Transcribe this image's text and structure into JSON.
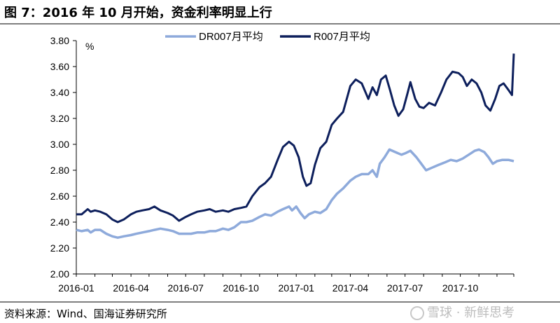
{
  "figure_title": "图 7：2016 年 10 月开始，资金利率明显上行",
  "source_note": "资料来源：Wind、国海证券研究所",
  "watermark": "雪球 · 新鲜思考",
  "colors": {
    "dr007": "#8eaadb",
    "r007": "#0d1f5c",
    "axis": "#000000",
    "rule": "#7f7f7f"
  },
  "chart_data": {
    "type": "line",
    "title": "",
    "xlabel": "",
    "ylabel": "%",
    "ylim": [
      2.0,
      3.8
    ],
    "yticks": [
      "2.00",
      "2.20",
      "2.40",
      "2.60",
      "2.80",
      "3.00",
      "3.20",
      "3.40",
      "3.60",
      "3.80"
    ],
    "xlim": [
      "2016-01",
      "2017-12-29"
    ],
    "xtick_labels": [
      "2016-01",
      "2016-04",
      "2016-07",
      "2016-10",
      "2017-01",
      "2017-04",
      "2017-07",
      "2017-10"
    ],
    "grid": false,
    "legend_position": "top",
    "series": [
      {
        "name": "DR007月平均",
        "points": [
          [
            "2016-01-01",
            2.34
          ],
          [
            "2016-01-10",
            2.33
          ],
          [
            "2016-01-20",
            2.34
          ],
          [
            "2016-01-25",
            2.32
          ],
          [
            "2016-02-01",
            2.34
          ],
          [
            "2016-02-10",
            2.34
          ],
          [
            "2016-02-20",
            2.31
          ],
          [
            "2016-03-01",
            2.29
          ],
          [
            "2016-03-10",
            2.28
          ],
          [
            "2016-03-20",
            2.29
          ],
          [
            "2016-04-01",
            2.3
          ],
          [
            "2016-04-10",
            2.31
          ],
          [
            "2016-04-20",
            2.32
          ],
          [
            "2016-05-01",
            2.33
          ],
          [
            "2016-05-10",
            2.34
          ],
          [
            "2016-05-20",
            2.35
          ],
          [
            "2016-06-01",
            2.34
          ],
          [
            "2016-06-10",
            2.33
          ],
          [
            "2016-06-20",
            2.31
          ],
          [
            "2016-07-01",
            2.31
          ],
          [
            "2016-07-10",
            2.31
          ],
          [
            "2016-07-20",
            2.32
          ],
          [
            "2016-08-01",
            2.32
          ],
          [
            "2016-08-10",
            2.33
          ],
          [
            "2016-08-20",
            2.33
          ],
          [
            "2016-09-01",
            2.35
          ],
          [
            "2016-09-10",
            2.34
          ],
          [
            "2016-09-20",
            2.36
          ],
          [
            "2016-10-01",
            2.4
          ],
          [
            "2016-10-10",
            2.4
          ],
          [
            "2016-10-20",
            2.41
          ],
          [
            "2016-11-01",
            2.44
          ],
          [
            "2016-11-10",
            2.46
          ],
          [
            "2016-11-20",
            2.45
          ],
          [
            "2016-12-01",
            2.48
          ],
          [
            "2016-12-10",
            2.5
          ],
          [
            "2016-12-20",
            2.52
          ],
          [
            "2016-12-25",
            2.49
          ],
          [
            "2017-01-01",
            2.52
          ],
          [
            "2017-01-08",
            2.47
          ],
          [
            "2017-01-15",
            2.43
          ],
          [
            "2017-01-22",
            2.46
          ],
          [
            "2017-02-01",
            2.48
          ],
          [
            "2017-02-10",
            2.47
          ],
          [
            "2017-02-20",
            2.5
          ],
          [
            "2017-03-01",
            2.57
          ],
          [
            "2017-03-10",
            2.62
          ],
          [
            "2017-03-20",
            2.66
          ],
          [
            "2017-04-01",
            2.72
          ],
          [
            "2017-04-10",
            2.75
          ],
          [
            "2017-04-20",
            2.77
          ],
          [
            "2017-05-01",
            2.77
          ],
          [
            "2017-05-08",
            2.8
          ],
          [
            "2017-05-15",
            2.75
          ],
          [
            "2017-05-20",
            2.85
          ],
          [
            "2017-05-28",
            2.9
          ],
          [
            "2017-06-05",
            2.96
          ],
          [
            "2017-06-15",
            2.94
          ],
          [
            "2017-06-25",
            2.92
          ],
          [
            "2017-07-01",
            2.93
          ],
          [
            "2017-07-10",
            2.95
          ],
          [
            "2017-07-20",
            2.9
          ],
          [
            "2017-07-28",
            2.85
          ],
          [
            "2017-08-05",
            2.8
          ],
          [
            "2017-08-15",
            2.82
          ],
          [
            "2017-08-25",
            2.84
          ],
          [
            "2017-09-05",
            2.86
          ],
          [
            "2017-09-15",
            2.88
          ],
          [
            "2017-09-25",
            2.87
          ],
          [
            "2017-10-05",
            2.89
          ],
          [
            "2017-10-15",
            2.92
          ],
          [
            "2017-10-25",
            2.95
          ],
          [
            "2017-11-01",
            2.96
          ],
          [
            "2017-11-10",
            2.94
          ],
          [
            "2017-11-17",
            2.9
          ],
          [
            "2017-11-24",
            2.85
          ],
          [
            "2017-12-01",
            2.87
          ],
          [
            "2017-12-10",
            2.88
          ],
          [
            "2017-12-20",
            2.88
          ],
          [
            "2017-12-29",
            2.87
          ]
        ]
      },
      {
        "name": "R007月平均",
        "points": [
          [
            "2016-01-01",
            2.46
          ],
          [
            "2016-01-10",
            2.46
          ],
          [
            "2016-01-20",
            2.5
          ],
          [
            "2016-01-25",
            2.48
          ],
          [
            "2016-02-01",
            2.49
          ],
          [
            "2016-02-10",
            2.48
          ],
          [
            "2016-02-20",
            2.46
          ],
          [
            "2016-03-01",
            2.42
          ],
          [
            "2016-03-10",
            2.4
          ],
          [
            "2016-03-20",
            2.42
          ],
          [
            "2016-04-01",
            2.46
          ],
          [
            "2016-04-10",
            2.48
          ],
          [
            "2016-04-20",
            2.49
          ],
          [
            "2016-05-01",
            2.5
          ],
          [
            "2016-05-10",
            2.52
          ],
          [
            "2016-05-20",
            2.49
          ],
          [
            "2016-06-01",
            2.47
          ],
          [
            "2016-06-10",
            2.45
          ],
          [
            "2016-06-20",
            2.41
          ],
          [
            "2016-07-01",
            2.44
          ],
          [
            "2016-07-10",
            2.46
          ],
          [
            "2016-07-20",
            2.48
          ],
          [
            "2016-08-01",
            2.49
          ],
          [
            "2016-08-10",
            2.5
          ],
          [
            "2016-08-20",
            2.48
          ],
          [
            "2016-09-01",
            2.49
          ],
          [
            "2016-09-10",
            2.48
          ],
          [
            "2016-09-20",
            2.5
          ],
          [
            "2016-10-01",
            2.51
          ],
          [
            "2016-10-10",
            2.52
          ],
          [
            "2016-10-20",
            2.6
          ],
          [
            "2016-11-01",
            2.67
          ],
          [
            "2016-11-10",
            2.7
          ],
          [
            "2016-11-20",
            2.75
          ],
          [
            "2016-12-01",
            2.88
          ],
          [
            "2016-12-10",
            2.98
          ],
          [
            "2016-12-20",
            3.02
          ],
          [
            "2016-12-28",
            2.99
          ],
          [
            "2017-01-05",
            2.9
          ],
          [
            "2017-01-12",
            2.75
          ],
          [
            "2017-01-18",
            2.68
          ],
          [
            "2017-01-25",
            2.7
          ],
          [
            "2017-02-01",
            2.84
          ],
          [
            "2017-02-10",
            2.97
          ],
          [
            "2017-02-20",
            3.02
          ],
          [
            "2017-03-01",
            3.15
          ],
          [
            "2017-03-10",
            3.2
          ],
          [
            "2017-03-20",
            3.25
          ],
          [
            "2017-04-01",
            3.45
          ],
          [
            "2017-04-10",
            3.5
          ],
          [
            "2017-04-20",
            3.47
          ],
          [
            "2017-05-01",
            3.35
          ],
          [
            "2017-05-08",
            3.44
          ],
          [
            "2017-05-15",
            3.38
          ],
          [
            "2017-05-22",
            3.5
          ],
          [
            "2017-05-30",
            3.53
          ],
          [
            "2017-06-06",
            3.42
          ],
          [
            "2017-06-13",
            3.3
          ],
          [
            "2017-06-20",
            3.22
          ],
          [
            "2017-06-28",
            3.27
          ],
          [
            "2017-07-05",
            3.39
          ],
          [
            "2017-07-10",
            3.48
          ],
          [
            "2017-07-18",
            3.35
          ],
          [
            "2017-07-25",
            3.29
          ],
          [
            "2017-08-01",
            3.28
          ],
          [
            "2017-08-10",
            3.32
          ],
          [
            "2017-08-20",
            3.3
          ],
          [
            "2017-08-30",
            3.4
          ],
          [
            "2017-09-08",
            3.5
          ],
          [
            "2017-09-18",
            3.56
          ],
          [
            "2017-09-28",
            3.55
          ],
          [
            "2017-10-05",
            3.52
          ],
          [
            "2017-10-12",
            3.45
          ],
          [
            "2017-10-20",
            3.5
          ],
          [
            "2017-10-28",
            3.47
          ],
          [
            "2017-11-05",
            3.4
          ],
          [
            "2017-11-12",
            3.3
          ],
          [
            "2017-11-20",
            3.26
          ],
          [
            "2017-11-28",
            3.35
          ],
          [
            "2017-12-05",
            3.45
          ],
          [
            "2017-12-12",
            3.47
          ],
          [
            "2017-12-20",
            3.42
          ],
          [
            "2017-12-26",
            3.38
          ],
          [
            "2017-12-29",
            3.7
          ]
        ]
      }
    ]
  }
}
